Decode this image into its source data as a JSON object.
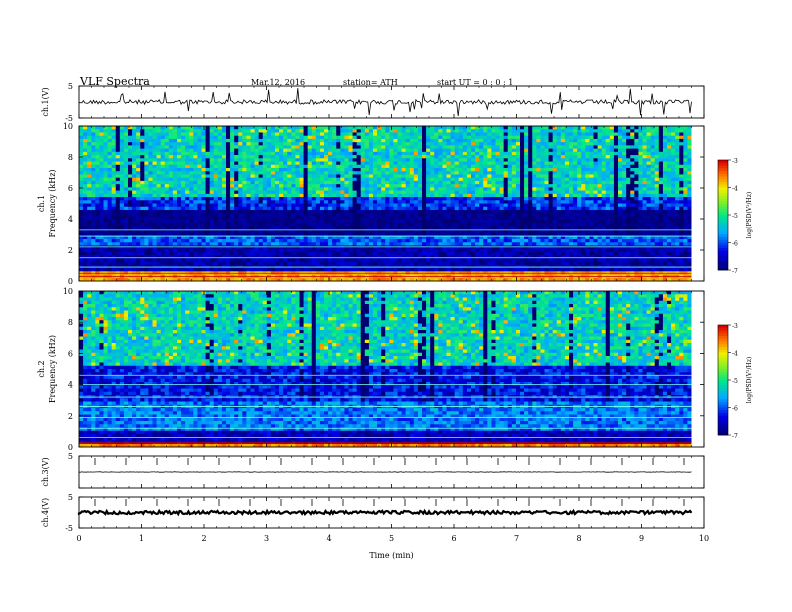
{
  "header": {
    "title": "VLF  Spectra",
    "date": "Mar.12, 2016",
    "station": "station= ATH",
    "start": "start  UT =   0 : 0  : 1"
  },
  "chart_data": {
    "type": "heatmap",
    "xlabel": "Time  (min)",
    "xlim": [
      0,
      10
    ],
    "xticks": [
      "0",
      "1",
      "2",
      "3",
      "4",
      "5",
      "6",
      "7",
      "8",
      "9",
      "10"
    ],
    "panels": [
      {
        "kind": "waveform",
        "ylabel": "ch.1(V)",
        "yticks": [
          "5",
          "-5"
        ],
        "ylim": [
          -5,
          5
        ],
        "level": 0,
        "noise": "high"
      },
      {
        "kind": "spectrogram",
        "ylabel": "ch.1\nFrequency  (kHz)",
        "yticks": [
          "10",
          "8",
          "6",
          "4",
          "2",
          "0"
        ],
        "ylim": [
          0,
          10
        ],
        "colorbar": {
          "label": "log(PSD(V²/Hz)",
          "ticks": [
            "-3",
            "-4",
            "-5",
            "-6",
            "-7"
          ],
          "range": [
            -7,
            -3
          ]
        }
      },
      {
        "kind": "spectrogram",
        "ylabel": "ch.2\nFrequency  (kHz)",
        "yticks": [
          "10",
          "8",
          "6",
          "4",
          "2",
          "0"
        ],
        "ylim": [
          0,
          10
        ],
        "colorbar": {
          "label": "log(PSD(V²/Hz)",
          "ticks": [
            "-3",
            "-4",
            "-5",
            "-6",
            "-7"
          ],
          "range": [
            -7,
            -3
          ]
        }
      },
      {
        "kind": "waveform",
        "ylabel": "ch.3(V)",
        "yticks": [
          "5",
          ""
        ],
        "ylim": [
          -5,
          5
        ],
        "level": 0,
        "noise": "low"
      },
      {
        "kind": "waveform",
        "ylabel": "ch.4(V)",
        "yticks": [
          "5",
          "-5"
        ],
        "ylim": [
          -5,
          5
        ],
        "level": 0,
        "noise": "thick"
      }
    ],
    "data_end_min": 9.8,
    "colors": {
      "axis": "#000000",
      "trace": "#000000"
    }
  }
}
